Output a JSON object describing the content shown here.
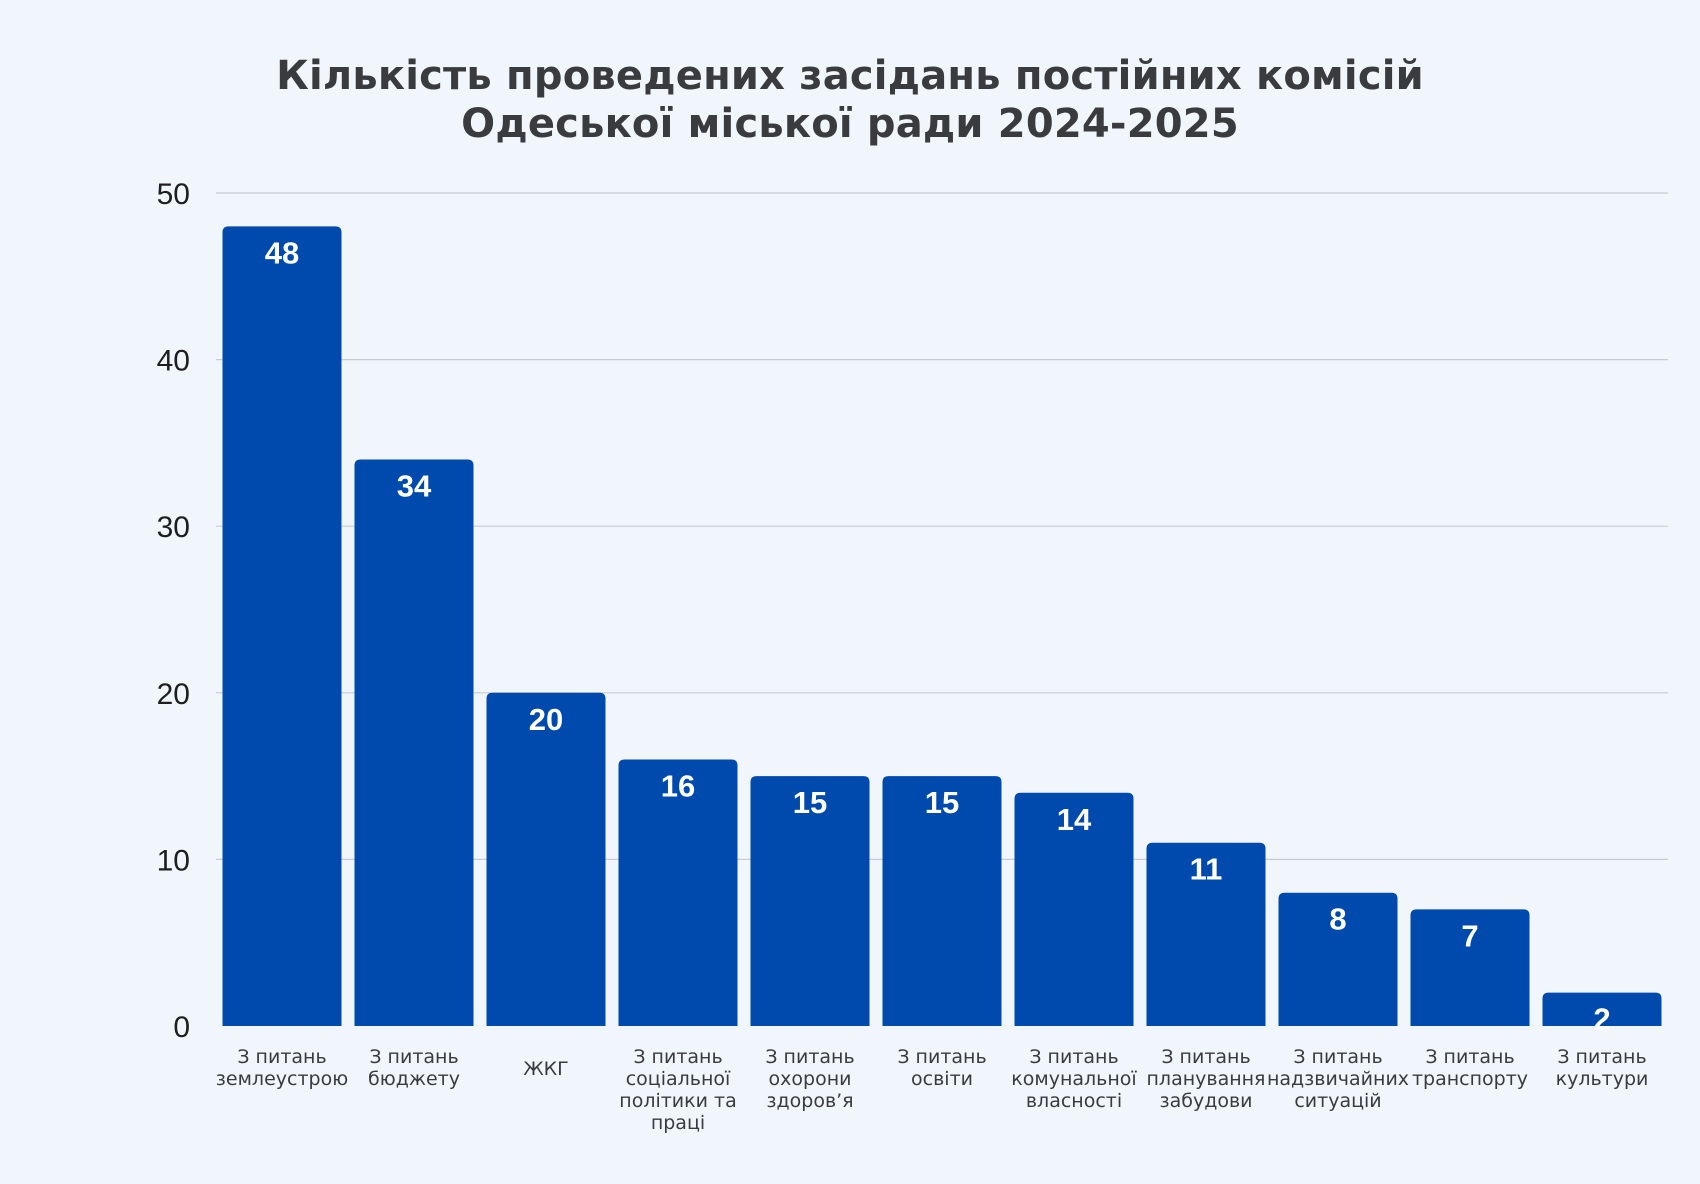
{
  "chart_data": {
    "type": "bar",
    "title_lines": [
      "Кількість проведених засідань постійних комісій",
      "Одеської міської ради 2024-2025"
    ],
    "categories": [
      [
        "З питань",
        "землеустрою"
      ],
      [
        "З питань",
        "бюджету"
      ],
      [
        "ЖКГ"
      ],
      [
        "З питань",
        "соціальної",
        "політики та",
        "праці"
      ],
      [
        "З питань",
        "охорони",
        "здоров’я"
      ],
      [
        "З питань",
        "освіти"
      ],
      [
        "З питань",
        "комунальної",
        "власності"
      ],
      [
        "З питань",
        "планування",
        "забудови"
      ],
      [
        "З питань",
        "надзвичайних",
        "ситуацій"
      ],
      [
        "З питань",
        "транспорту"
      ],
      [
        "З питань",
        "культури"
      ]
    ],
    "values": [
      48,
      34,
      20,
      16,
      15,
      15,
      14,
      11,
      8,
      7,
      2
    ],
    "data_labels": [
      "48",
      "34",
      "20",
      "16",
      "15",
      "15",
      "14",
      "11",
      "8",
      "7",
      "2"
    ],
    "yticks": [
      "0",
      "10",
      "20",
      "30",
      "40",
      "50"
    ],
    "ylim": [
      0,
      50
    ],
    "grid": true,
    "legend": "none",
    "bar_color": "#004aad",
    "grid_color": "#c8ccd2",
    "background": "#f1f6fd"
  }
}
